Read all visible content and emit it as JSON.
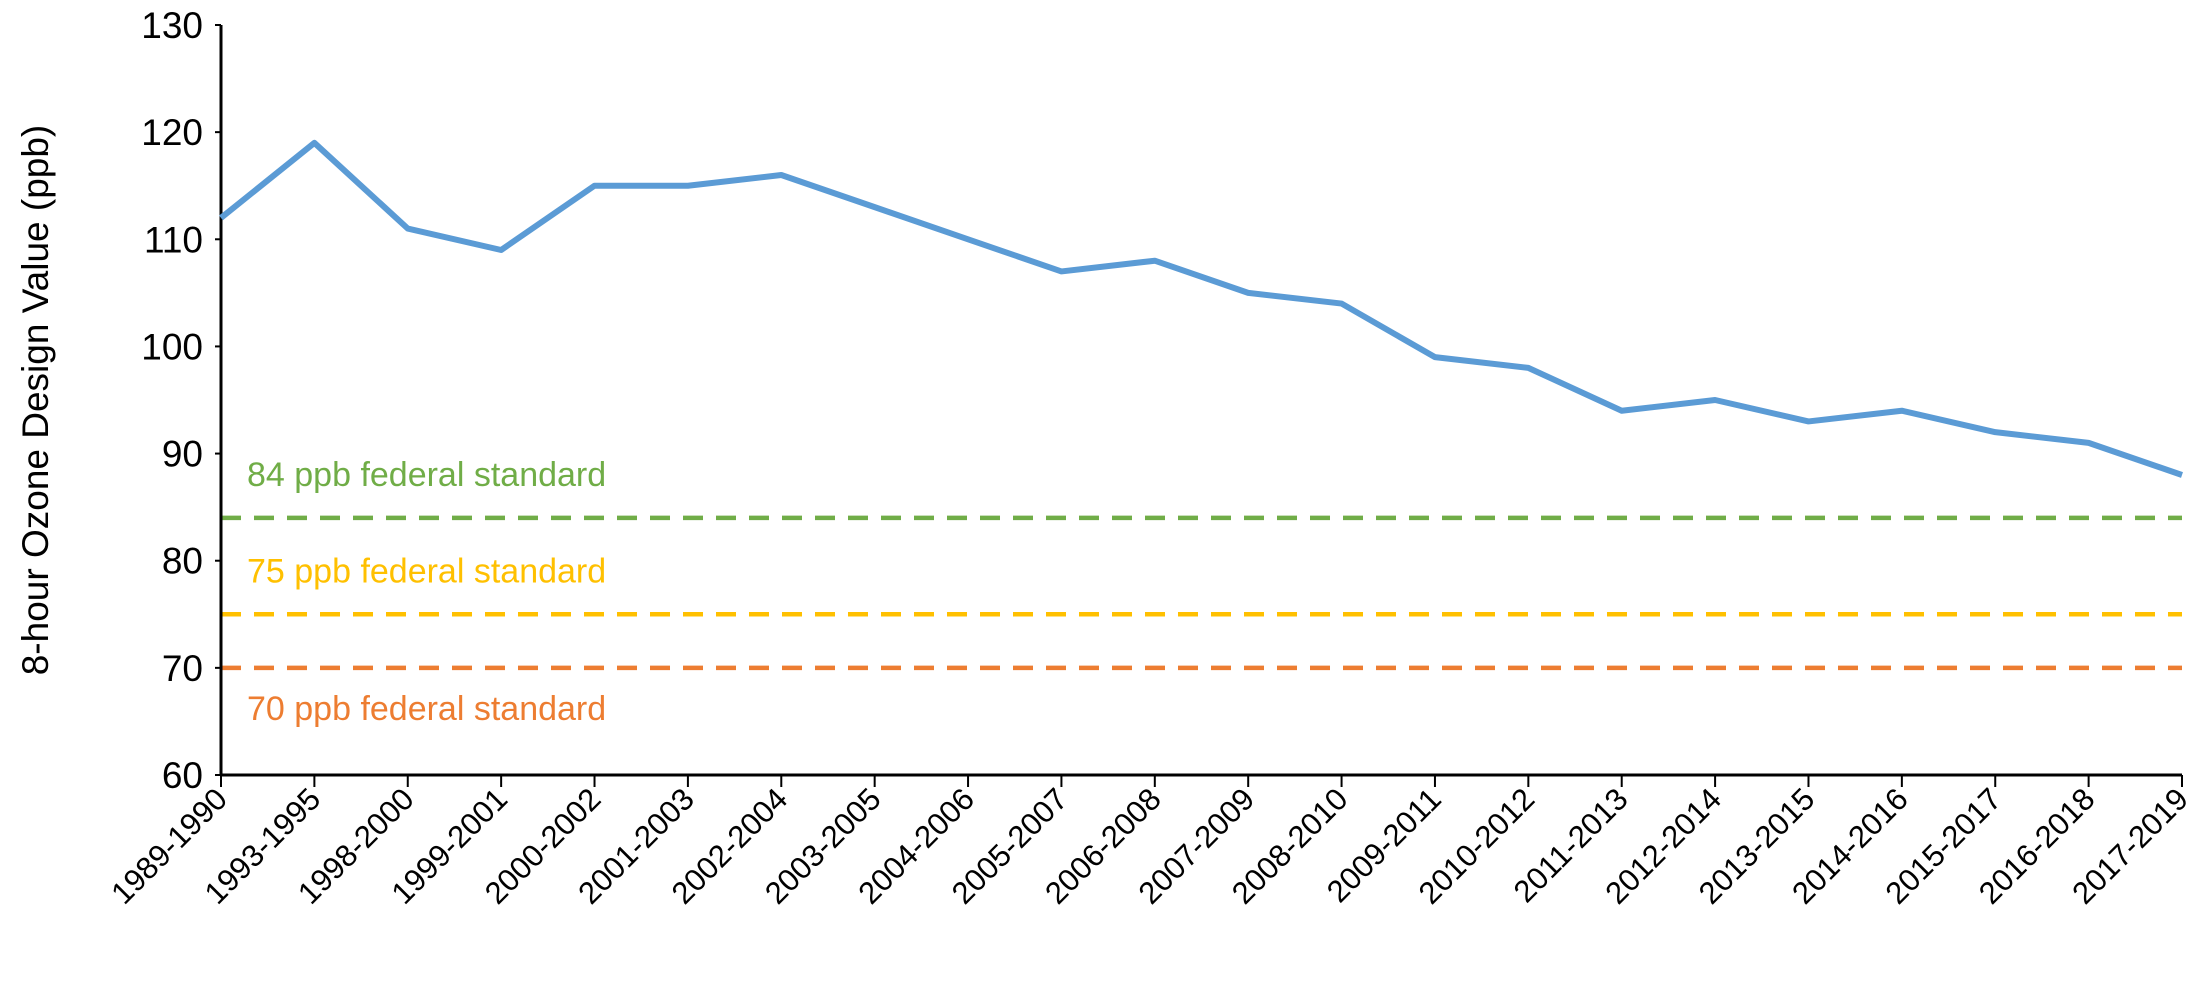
{
  "chart_data": {
    "type": "line",
    "ylabel": "8-hour Ozone Design Value (ppb)",
    "categories": [
      "1989-1990",
      "1993-1995",
      "1998-2000",
      "1999-2001",
      "2000-2002",
      "2001-2003",
      "2002-2004",
      "2003-2005",
      "2004-2006",
      "2005-2007",
      "2006-2008",
      "2007-2009",
      "2008-2010",
      "2009-2011",
      "2010-2012",
      "2011-2013",
      "2012-2014",
      "2013-2015",
      "2014-2016",
      "2015-2017",
      "2016-2018",
      "2017-2019"
    ],
    "series": [
      {
        "color": "#5b9bd5",
        "values": [
          112,
          119,
          111,
          109,
          115,
          115,
          116,
          113,
          110,
          107,
          108,
          105,
          104,
          99,
          98,
          94,
          95,
          93,
          94,
          92,
          91,
          88
        ]
      }
    ],
    "ylim": [
      60,
      130
    ],
    "yticks": [
      60,
      70,
      80,
      90,
      100,
      110,
      120,
      130
    ],
    "reference_lines": [
      {
        "value": 84,
        "label": "84 ppb federal standard",
        "color": "#70ad47",
        "label_side": "above"
      },
      {
        "value": 75,
        "label": "75 ppb federal standard",
        "color": "#ffc000",
        "label_side": "above"
      },
      {
        "value": 70,
        "label": "70 ppb federal standard",
        "color": "#ed7d31",
        "label_side": "below"
      }
    ]
  }
}
